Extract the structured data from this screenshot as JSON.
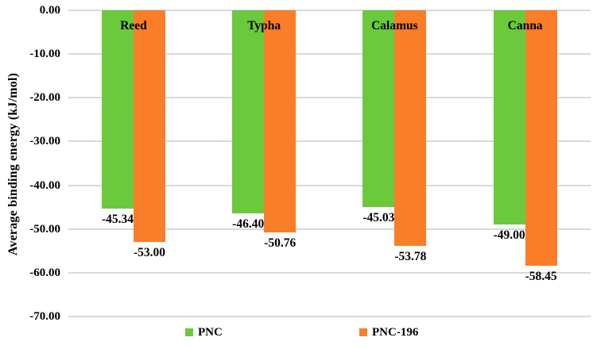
{
  "chart_data": {
    "type": "bar",
    "orientation": "vertical",
    "title": "",
    "ylabel": "Average binding energy (kJ/mol)",
    "xlabel": "",
    "ylim": [
      -70,
      0
    ],
    "ytick_step": 10,
    "ytick_labels": [
      "0.00",
      "-10.00",
      "-20.00",
      "-30.00",
      "-40.00",
      "-50.00",
      "-60.00",
      "-70.00"
    ],
    "grid": true,
    "legend_position": "bottom",
    "categories": [
      "Reed",
      "Typha",
      "Calamus",
      "Canna"
    ],
    "series": [
      {
        "name": "PNC",
        "color": "#6bc93c",
        "values": [
          -45.34,
          -46.4,
          -45.03,
          -49.0
        ],
        "value_labels": [
          "-45.34",
          "-46.40",
          "-45.03",
          "-49.00"
        ]
      },
      {
        "name": "PNC-196",
        "color": "#fa7d28",
        "values": [
          -53.0,
          -50.76,
          -53.78,
          -58.45
        ],
        "value_labels": [
          "-53.00",
          "-50.76",
          "-53.78",
          "-58.45"
        ]
      }
    ],
    "colors": {
      "gridline": "#d9d9d9",
      "text": "#000000",
      "background": "#ffffff"
    }
  }
}
